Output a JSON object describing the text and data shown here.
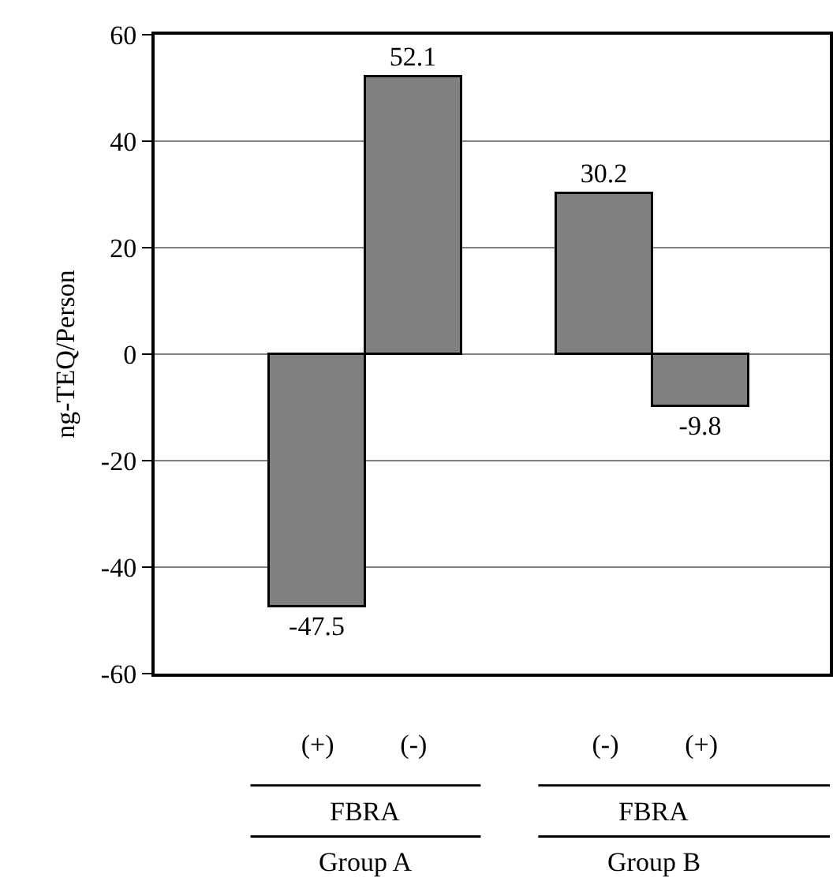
{
  "chart_data": {
    "type": "bar",
    "ylabel": "ng-TEQ/Person",
    "categories": [
      "(+)",
      "(-)",
      "(-)",
      "(+)"
    ],
    "values": [
      -47.5,
      52.1,
      30.2,
      -9.8
    ],
    "color": "#808080",
    "data_labels": true,
    "ylim": [
      -60,
      60
    ],
    "yticks": [
      -60,
      -40,
      -20,
      0,
      20,
      40,
      60
    ],
    "grid": "y",
    "annotations": [
      "FBRA",
      "FBRA",
      "Group A",
      "Group B"
    ]
  }
}
